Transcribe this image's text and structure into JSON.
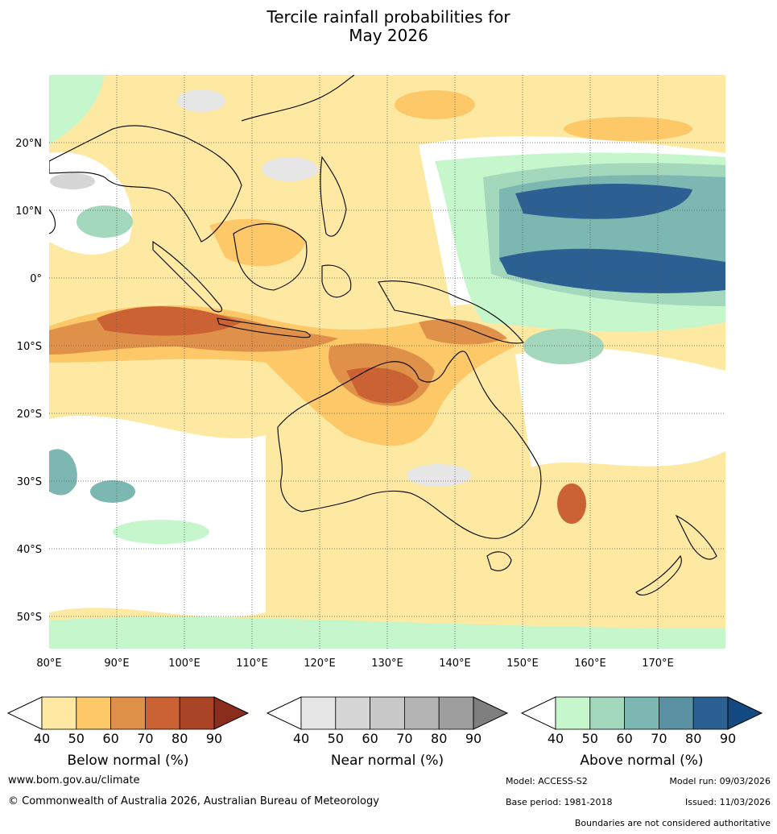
{
  "title_line1": "Tercile rainfall probabilities for",
  "title_line2": "May 2026",
  "lat_labels": [
    "20°N",
    "10°N",
    "0°",
    "10°S",
    "20°S",
    "30°S",
    "40°S",
    "50°S"
  ],
  "lon_labels": [
    "80°E",
    "90°E",
    "100°E",
    "110°E",
    "120°E",
    "130°E",
    "140°E",
    "150°E",
    "160°E",
    "170°E"
  ],
  "colorbars": [
    {
      "name": "below",
      "title": "Below normal (%)",
      "ticks": [
        "40",
        "50",
        "60",
        "70",
        "80",
        "90"
      ],
      "colors": [
        "#ffffff",
        "#fde9a2",
        "#fcc868",
        "#e09149",
        "#cb6233",
        "#a94426",
        "#8b2d1c"
      ]
    },
    {
      "name": "near",
      "title": "Near normal (%)",
      "ticks": [
        "40",
        "50",
        "60",
        "70",
        "80",
        "90"
      ],
      "colors": [
        "#ffffff",
        "#e6e6e6",
        "#d6d6d6",
        "#c8c8c8",
        "#b4b4b4",
        "#9e9e9e",
        "#7f7f7f"
      ]
    },
    {
      "name": "above",
      "title": "Above normal (%)",
      "ticks": [
        "40",
        "50",
        "60",
        "70",
        "80",
        "90"
      ],
      "colors": [
        "#ffffff",
        "#c6f7cc",
        "#a3d8bd",
        "#7cb7b1",
        "#5a91a3",
        "#2c5f92",
        "#134a82"
      ]
    }
  ],
  "footer": {
    "website": "www.bom.gov.au/climate",
    "copyright": "© Commonwealth of Australia 2026, Australian Bureau of Meteorology",
    "model": "Model: ACCESS-S2",
    "model_run": "Model run: 09/03/2026",
    "base_period": "Base period: 1981-2018",
    "issued": "Issued: 11/03/2026",
    "disclaimer": "Boundaries are not considered authoritative"
  }
}
